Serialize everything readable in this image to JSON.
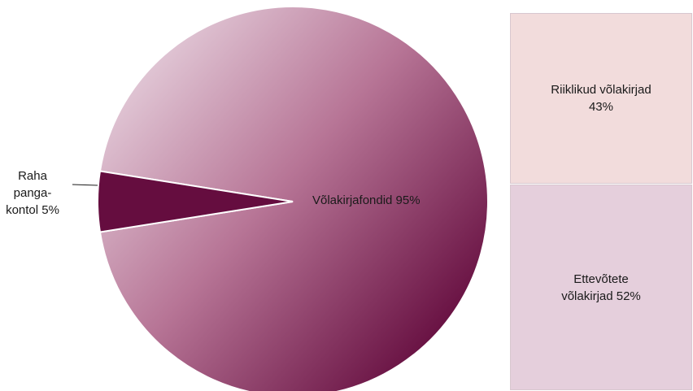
{
  "chart_data": [
    {
      "type": "pie",
      "slices": [
        {
          "label_lines": [
            "Võlakirjafondid  95%"
          ],
          "value": 95
        },
        {
          "label_lines": [
            "Raha",
            "panga-",
            "kontol 5%"
          ],
          "value": 5
        }
      ],
      "colors": {
        "main_light": "#e2c9d7",
        "main_dark": "#650d3f",
        "small": "#650d3f",
        "border": "#ffffff",
        "leader_line": "#1a1a1a"
      }
    },
    {
      "type": "bar",
      "stacked": true,
      "series": [
        {
          "label_lines": [
            "Riiklikud võlakirjad",
            "43%"
          ],
          "value": 43,
          "color": "#f2dcdc"
        },
        {
          "label_lines": [
            "Ettevõtete",
            "võlakirjad 52%"
          ],
          "value": 52,
          "color": "#e5cfdc"
        }
      ]
    }
  ]
}
